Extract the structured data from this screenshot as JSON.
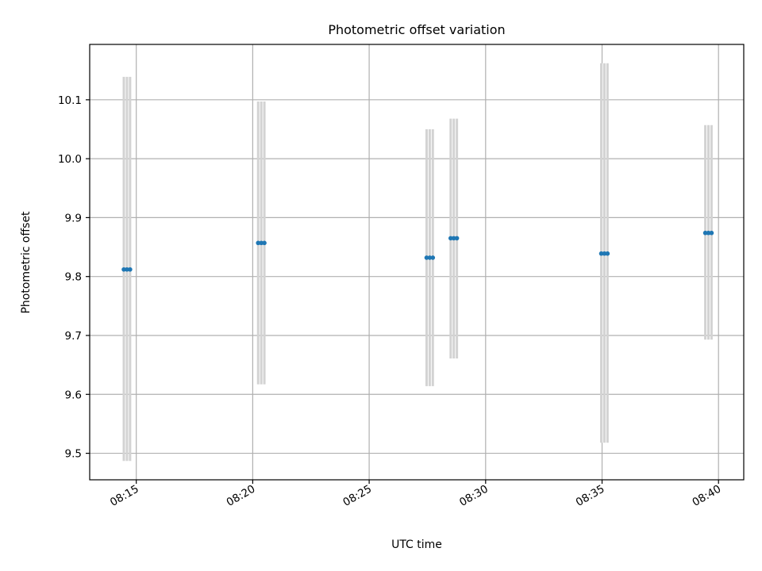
{
  "chart_data": {
    "type": "scatter",
    "title": "Photometric offset variation",
    "xlabel": "UTC time",
    "ylabel": "Photometric offset",
    "x_tick_labels": [
      "08:15",
      "08:20",
      "08:25",
      "08:30",
      "08:35",
      "08:40"
    ],
    "y_tick_labels": [
      "9.5",
      "9.6",
      "9.7",
      "9.8",
      "9.9",
      "10.0",
      "10.1"
    ],
    "x_ticks": [
      "08:15",
      "08:20",
      "08:25",
      "08:30",
      "08:35",
      "08:40"
    ],
    "y_ticks": [
      9.5,
      9.6,
      9.7,
      9.8,
      9.9,
      10.0,
      10.1
    ],
    "xlim": [
      "08:13:00",
      "08:41:05"
    ],
    "ylim": [
      9.455,
      10.194
    ],
    "grid": true,
    "colors": {
      "point": "#1f77b4",
      "errorbar": "#d3d3d3",
      "grid": "#b0b0b0"
    },
    "groups": [
      {
        "times": [
          "08:14:28",
          "08:14:36",
          "08:14:44"
        ],
        "value": 9.812,
        "error_low": 9.487,
        "error_high": 10.139
      },
      {
        "times": [
          "08:20:14",
          "08:20:22",
          "08:20:30"
        ],
        "value": 9.857,
        "error_low": 9.617,
        "error_high": 10.097
      },
      {
        "times": [
          "08:27:28",
          "08:27:36",
          "08:27:44"
        ],
        "value": 9.832,
        "error_low": 9.614,
        "error_high": 10.05
      },
      {
        "times": [
          "08:28:30",
          "08:28:38",
          "08:28:46"
        ],
        "value": 9.865,
        "error_low": 9.661,
        "error_high": 10.068
      },
      {
        "times": [
          "08:34:58",
          "08:35:06",
          "08:35:14"
        ],
        "value": 9.839,
        "error_low": 9.518,
        "error_high": 10.162
      },
      {
        "times": [
          "08:39:26",
          "08:39:34",
          "08:39:42"
        ],
        "value": 9.874,
        "error_low": 9.693,
        "error_high": 10.057
      }
    ]
  }
}
